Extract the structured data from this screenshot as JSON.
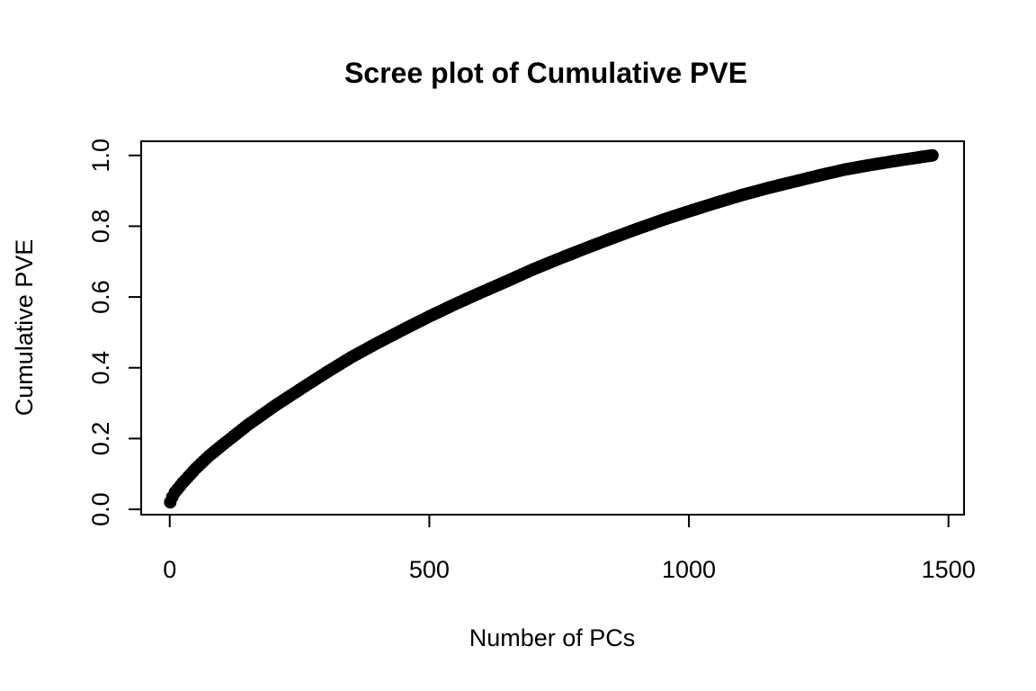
{
  "chart_data": {
    "type": "scatter",
    "title": "Scree plot of Cumulative PVE",
    "xlabel": "Number of PCs",
    "ylabel": "Cumulative PVE",
    "xlim": [
      -55,
      1530
    ],
    "ylim": [
      -0.015,
      1.04
    ],
    "xticks": [
      0,
      500,
      1000,
      1500
    ],
    "xtick_labels": [
      "0",
      "500",
      "1000",
      "1500"
    ],
    "yticks": [
      0.0,
      0.2,
      0.4,
      0.6,
      0.8,
      1.0
    ],
    "ytick_labels": [
      "0.0",
      "0.2",
      "0.4",
      "0.6",
      "0.8",
      "1.0"
    ],
    "grid": false,
    "legend": "none",
    "point_color": "#000000",
    "series": [
      {
        "x": [
          1,
          5,
          10,
          25,
          50,
          75,
          100,
          150,
          200,
          250,
          300,
          350,
          400,
          450,
          500,
          550,
          600,
          650,
          700,
          750,
          800,
          850,
          900,
          950,
          1000,
          1050,
          1100,
          1150,
          1200,
          1250,
          1300,
          1350,
          1400,
          1450,
          1469
        ],
        "values": [
          0.02,
          0.035,
          0.048,
          0.075,
          0.115,
          0.15,
          0.18,
          0.238,
          0.29,
          0.338,
          0.385,
          0.43,
          0.47,
          0.508,
          0.545,
          0.58,
          0.613,
          0.645,
          0.678,
          0.708,
          0.737,
          0.765,
          0.792,
          0.818,
          0.842,
          0.865,
          0.887,
          0.907,
          0.925,
          0.943,
          0.96,
          0.973,
          0.985,
          0.996,
          1.0
        ]
      }
    ]
  }
}
